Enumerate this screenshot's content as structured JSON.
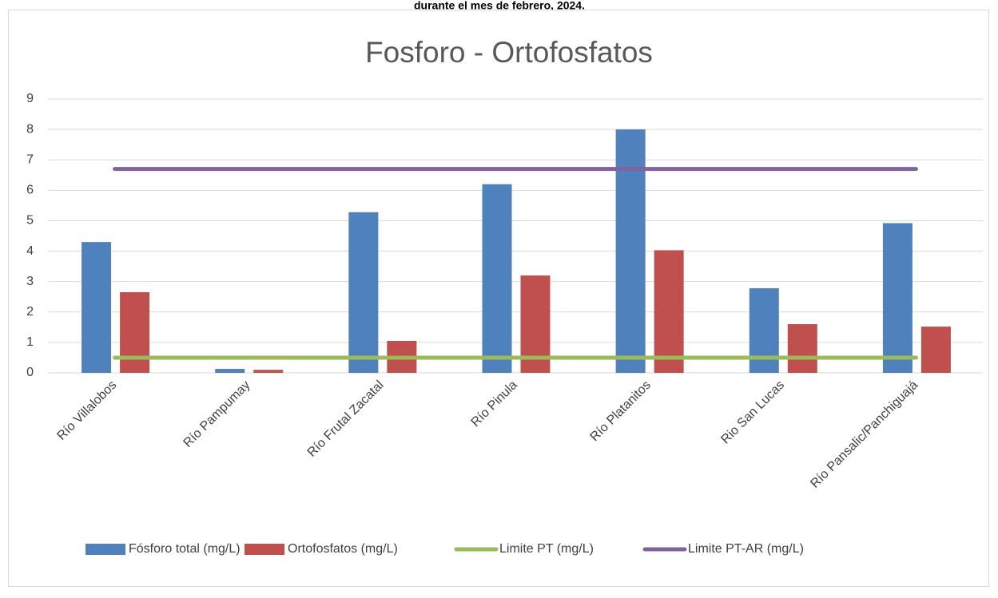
{
  "caption": "durante el mes de febrero, 2024.",
  "chart_data": {
    "type": "bar",
    "title": "Fosforo  - Ortofosfatos",
    "categories": [
      "Río Villalobos",
      "Río Pampumay",
      "Río Frutal Zacatal",
      "Río Pinula",
      "Río Platanitos",
      "Rio San Lucas",
      "Río Pansalic/Panchiguajá"
    ],
    "series": [
      {
        "name": "Fósforo total (mg/L)",
        "color": "#4f81bd",
        "kind": "bar",
        "values": [
          4.3,
          0.13,
          5.28,
          6.2,
          8.0,
          2.78,
          4.92
        ]
      },
      {
        "name": "Ortofosfatos (mg/L)",
        "color": "#c0504d",
        "kind": "bar",
        "values": [
          2.65,
          0.1,
          1.05,
          3.2,
          4.03,
          1.6,
          1.52
        ]
      },
      {
        "name": "Limite PT (mg/L)",
        "color": "#9bbb59",
        "kind": "line",
        "values": [
          0.5,
          0.5,
          0.5,
          0.5,
          0.5,
          0.5,
          0.5
        ]
      },
      {
        "name": "Limite PT-AR (mg/L)",
        "color": "#8064a2",
        "kind": "line",
        "values": [
          6.7,
          6.7,
          6.7,
          6.7,
          6.7,
          6.7,
          6.7
        ]
      }
    ],
    "ylim": [
      0,
      9
    ],
    "yticks": [
      0,
      1,
      2,
      3,
      4,
      5,
      6,
      7,
      8,
      9
    ],
    "grid": true,
    "legend": "bottom"
  }
}
